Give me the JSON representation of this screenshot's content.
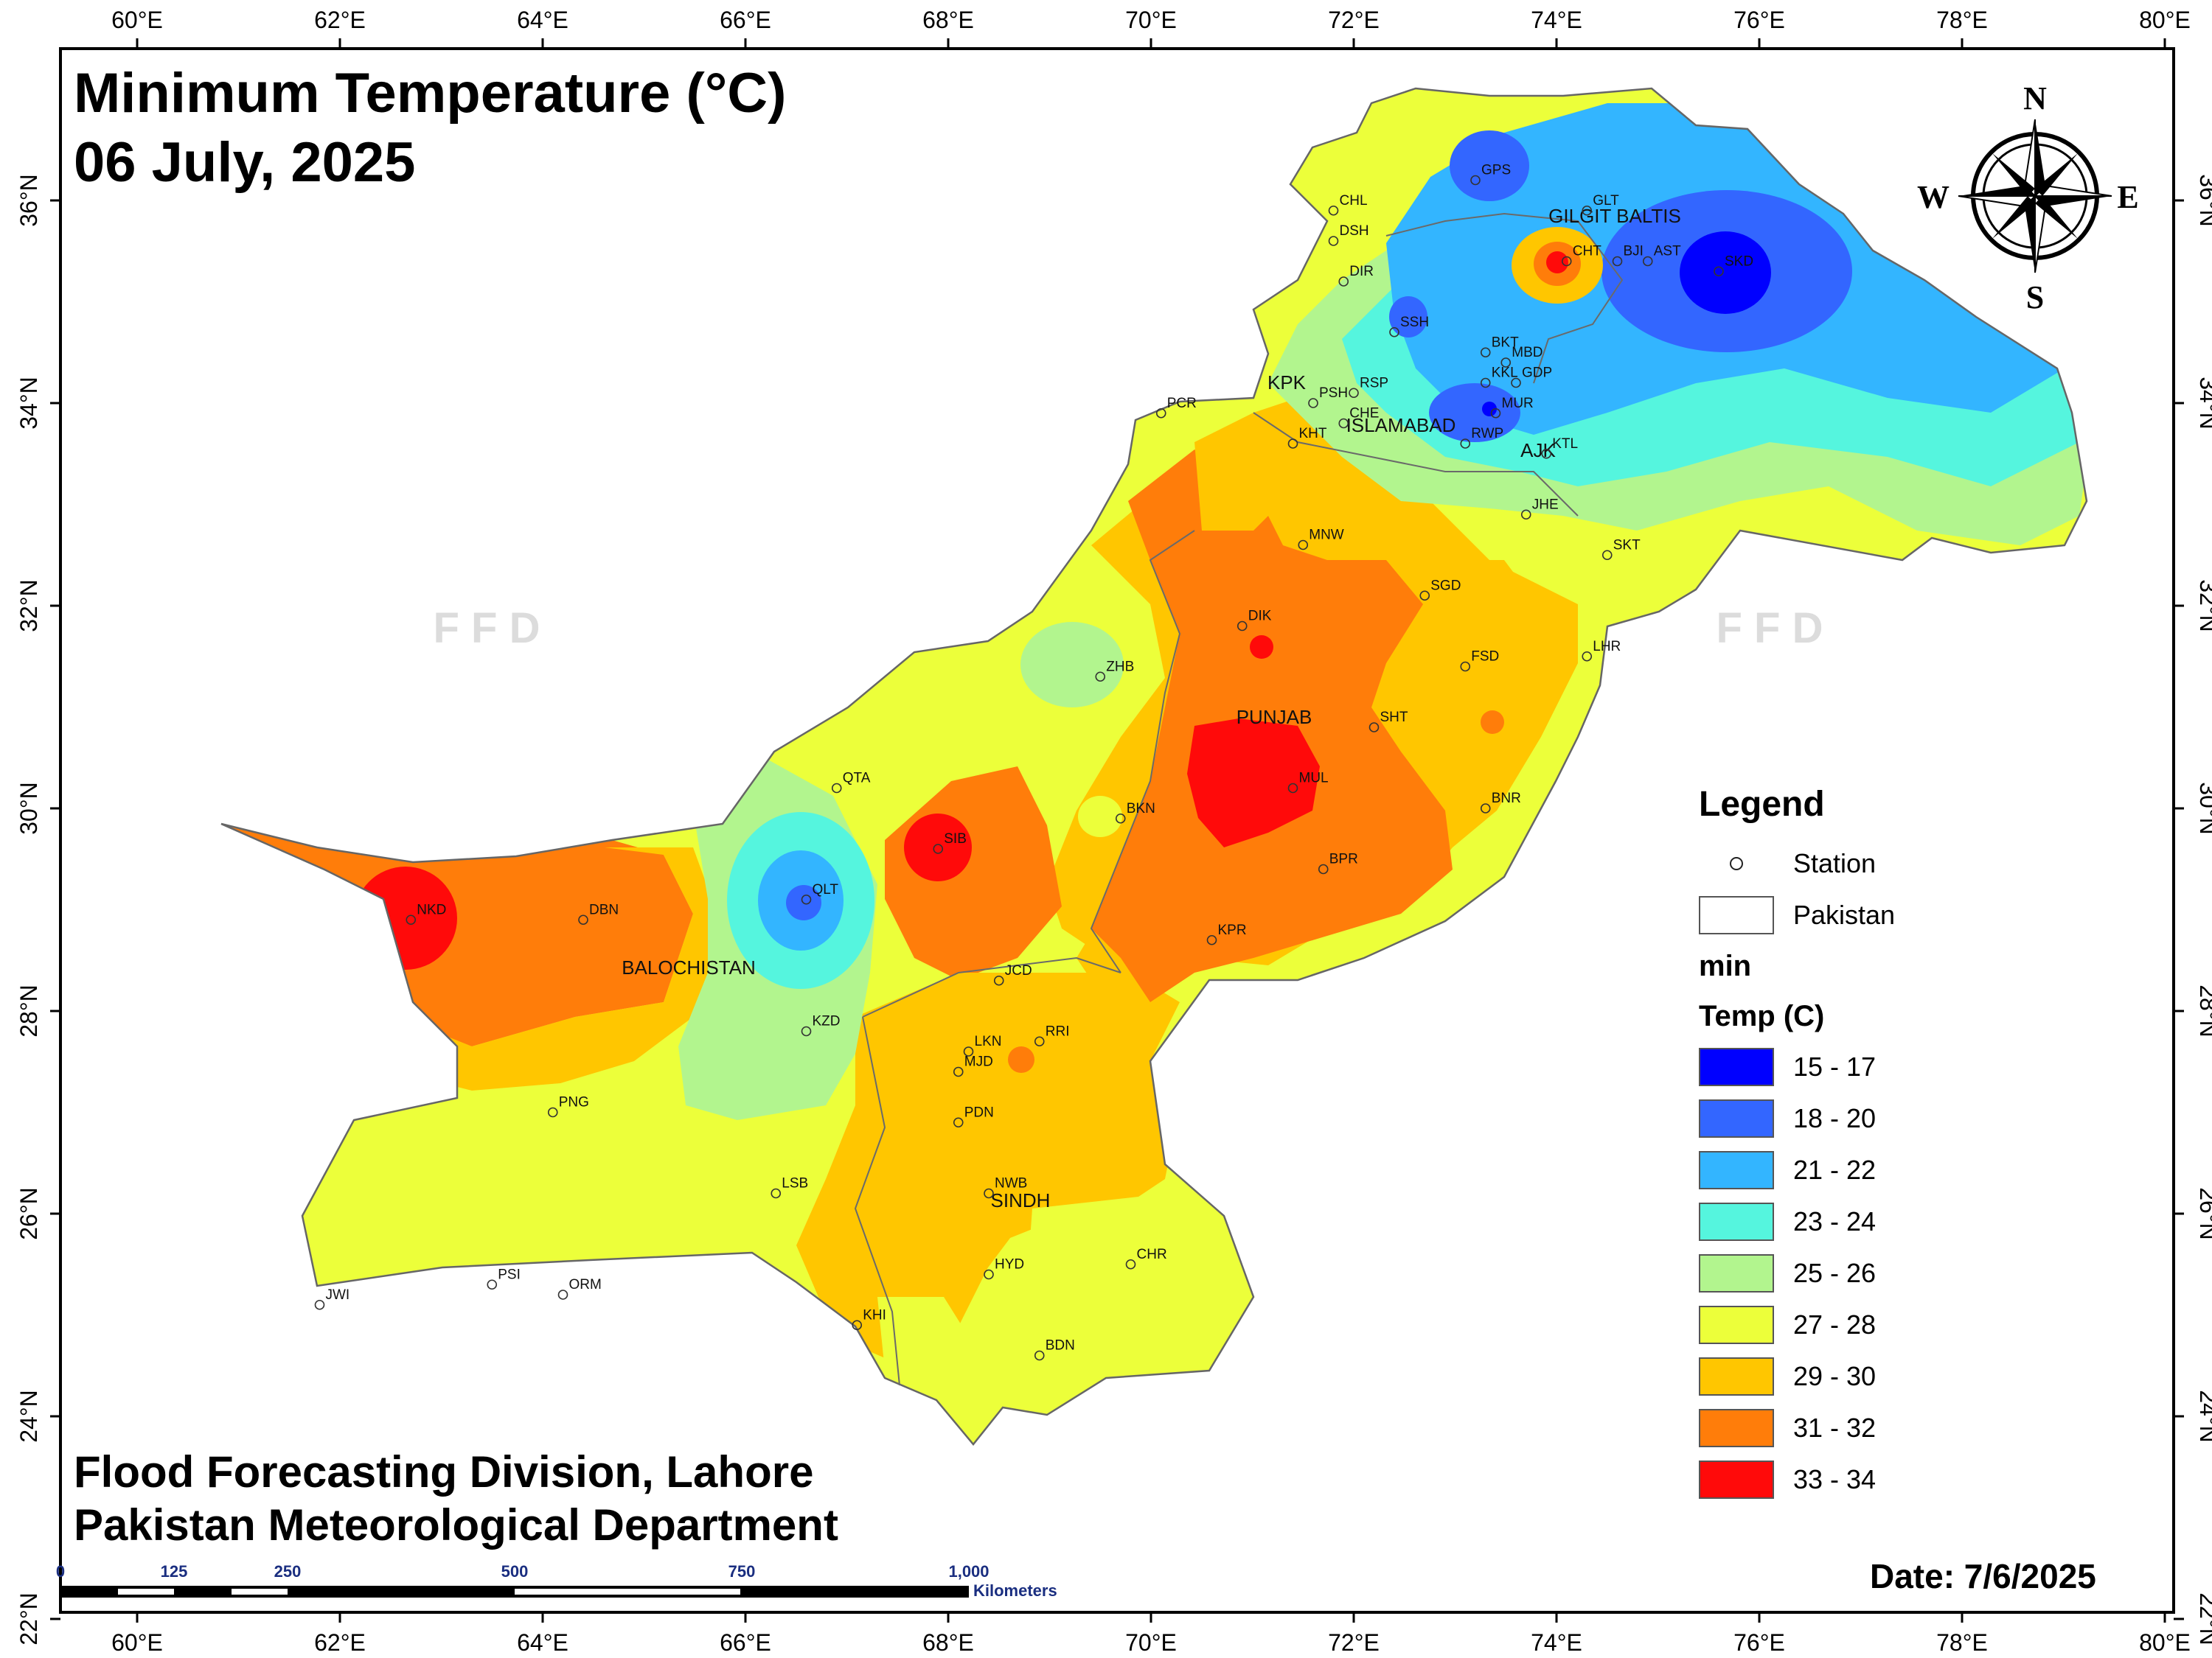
{
  "title": {
    "line1": "Minimum Temperature (°C)",
    "line2": "06 July, 2025"
  },
  "credits": {
    "line1": "Flood Forecasting Division, Lahore",
    "line2": "Pakistan Meteorological Department"
  },
  "date_stamp": "Date: 7/6/2025",
  "watermark": "F F D",
  "north_arrow": {
    "n": "N",
    "s": "S",
    "e": "E",
    "w": "W"
  },
  "axes": {
    "longitude_labels": [
      "60°E",
      "62°E",
      "64°E",
      "66°E",
      "68°E",
      "70°E",
      "72°E",
      "74°E",
      "76°E",
      "78°E",
      "80°E"
    ],
    "latitude_labels": [
      "36°N",
      "34°N",
      "32°N",
      "30°N",
      "28°N",
      "26°N",
      "24°N",
      "22°N"
    ]
  },
  "scale_bar": {
    "ticks": [
      "0",
      "125",
      "250",
      "500",
      "750",
      "1,000"
    ],
    "unit": "Kilometers"
  },
  "legend": {
    "title": "Legend",
    "station_label": "Station",
    "boundary_label": "Pakistan",
    "field_label": "min",
    "temp_label": "Temp (C)",
    "classes": [
      {
        "range": "15 - 17",
        "color": "#0000ff"
      },
      {
        "range": "18 - 20",
        "color": "#3366ff"
      },
      {
        "range": "21 - 22",
        "color": "#33b5ff"
      },
      {
        "range": "23 - 24",
        "color": "#55f5de"
      },
      {
        "range": "25 - 26",
        "color": "#b2f58e"
      },
      {
        "range": "27 - 28",
        "color": "#ecff3a"
      },
      {
        "range": "29 - 30",
        "color": "#ffc600"
      },
      {
        "range": "31 - 32",
        "color": "#ff7d0a"
      },
      {
        "range": "33 - 34",
        "color": "#ff0a0a"
      }
    ]
  },
  "regions": [
    "GILGIT BALTIS",
    "KPK",
    "ISLAMABAD",
    "AJK",
    "PUNJAB",
    "BALOCHISTAN",
    "SINDH"
  ],
  "stations": [
    {
      "code": "GPS",
      "lon": 73.2,
      "lat": 36.2
    },
    {
      "code": "GLT",
      "lon": 74.3,
      "lat": 35.9
    },
    {
      "code": "CHL",
      "lon": 71.8,
      "lat": 35.9
    },
    {
      "code": "DSH",
      "lon": 71.8,
      "lat": 35.6
    },
    {
      "code": "DIR",
      "lon": 71.9,
      "lat": 35.2
    },
    {
      "code": "CHT",
      "lon": 74.1,
      "lat": 35.4
    },
    {
      "code": "BJI",
      "lon": 74.6,
      "lat": 35.4
    },
    {
      "code": "AST",
      "lon": 74.9,
      "lat": 35.4
    },
    {
      "code": "SKD",
      "lon": 75.6,
      "lat": 35.3
    },
    {
      "code": "SSH",
      "lon": 72.4,
      "lat": 34.7
    },
    {
      "code": "BKT",
      "lon": 73.3,
      "lat": 34.5
    },
    {
      "code": "MBD",
      "lon": 73.5,
      "lat": 34.4
    },
    {
      "code": "KKL",
      "lon": 73.3,
      "lat": 34.2
    },
    {
      "code": "GDP",
      "lon": 73.6,
      "lat": 34.2
    },
    {
      "code": "PSH",
      "lon": 71.6,
      "lat": 34.0
    },
    {
      "code": "RSP",
      "lon": 72.0,
      "lat": 34.1
    },
    {
      "code": "CHE",
      "lon": 71.9,
      "lat": 33.8
    },
    {
      "code": "MUR",
      "lon": 73.4,
      "lat": 33.9
    },
    {
      "code": "RWP",
      "lon": 73.1,
      "lat": 33.6
    },
    {
      "code": "PCR",
      "lon": 70.1,
      "lat": 33.9
    },
    {
      "code": "KHT",
      "lon": 71.4,
      "lat": 33.6
    },
    {
      "code": "KTL",
      "lon": 73.9,
      "lat": 33.5
    },
    {
      "code": "JHE",
      "lon": 73.7,
      "lat": 32.9
    },
    {
      "code": "MNW",
      "lon": 71.5,
      "lat": 32.6
    },
    {
      "code": "SKT",
      "lon": 74.5,
      "lat": 32.5
    },
    {
      "code": "SGD",
      "lon": 72.7,
      "lat": 32.1
    },
    {
      "code": "DIK",
      "lon": 70.9,
      "lat": 31.8
    },
    {
      "code": "FSD",
      "lon": 73.1,
      "lat": 31.4
    },
    {
      "code": "LHR",
      "lon": 74.3,
      "lat": 31.5
    },
    {
      "code": "ZHB",
      "lon": 69.5,
      "lat": 31.3
    },
    {
      "code": "SHT",
      "lon": 72.2,
      "lat": 30.8
    },
    {
      "code": "QTA",
      "lon": 66.9,
      "lat": 30.2
    },
    {
      "code": "MUL",
      "lon": 71.4,
      "lat": 30.2
    },
    {
      "code": "BNR",
      "lon": 73.3,
      "lat": 30.0
    },
    {
      "code": "BKN",
      "lon": 69.7,
      "lat": 29.9
    },
    {
      "code": "SIB",
      "lon": 67.9,
      "lat": 29.6
    },
    {
      "code": "BPR",
      "lon": 71.7,
      "lat": 29.4
    },
    {
      "code": "QLT",
      "lon": 66.6,
      "lat": 29.1
    },
    {
      "code": "NKD",
      "lon": 62.7,
      "lat": 28.9
    },
    {
      "code": "DBN",
      "lon": 64.4,
      "lat": 28.9
    },
    {
      "code": "KPR",
      "lon": 70.6,
      "lat": 28.7
    },
    {
      "code": "JCD",
      "lon": 68.5,
      "lat": 28.3
    },
    {
      "code": "KZD",
      "lon": 66.6,
      "lat": 27.8
    },
    {
      "code": "RRI",
      "lon": 68.9,
      "lat": 27.7
    },
    {
      "code": "LKN",
      "lon": 68.2,
      "lat": 27.6
    },
    {
      "code": "MJD",
      "lon": 68.1,
      "lat": 27.4
    },
    {
      "code": "PNG",
      "lon": 64.1,
      "lat": 27.0
    },
    {
      "code": "PDN",
      "lon": 68.1,
      "lat": 26.9
    },
    {
      "code": "NWB",
      "lon": 68.4,
      "lat": 26.2
    },
    {
      "code": "LSB",
      "lon": 66.3,
      "lat": 26.2
    },
    {
      "code": "CHR",
      "lon": 69.8,
      "lat": 25.5
    },
    {
      "code": "HYD",
      "lon": 68.4,
      "lat": 25.4
    },
    {
      "code": "PSI",
      "lon": 63.5,
      "lat": 25.3
    },
    {
      "code": "ORM",
      "lon": 64.2,
      "lat": 25.2
    },
    {
      "code": "JWI",
      "lon": 61.8,
      "lat": 25.1
    },
    {
      "code": "KHI",
      "lon": 67.1,
      "lat": 24.9
    },
    {
      "code": "BDN",
      "lon": 68.9,
      "lat": 24.6
    }
  ]
}
